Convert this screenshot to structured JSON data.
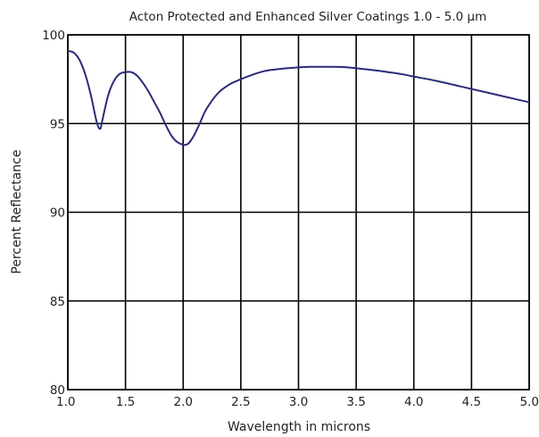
{
  "chart_data": {
    "type": "line",
    "title": "Acton Protected and Enhanced Silver Coatings 1.0 - 5.0 µm",
    "xlabel": "Wavelength in microns",
    "ylabel": "Percent Reflectance",
    "xlim": [
      1.0,
      5.0
    ],
    "ylim": [
      80,
      100
    ],
    "xticks": [
      "1.0",
      "1.5",
      "2.0",
      "2.5",
      "3.0",
      "3.5",
      "4.0",
      "4.5",
      "5.0"
    ],
    "yticks": [
      "80",
      "85",
      "90",
      "95",
      "100"
    ],
    "grid": true,
    "line_color": "#2b2b7a",
    "series": [
      {
        "x": [
          1.0,
          1.05,
          1.1,
          1.15,
          1.2,
          1.25,
          1.28,
          1.3,
          1.35,
          1.4,
          1.45,
          1.5,
          1.55,
          1.6,
          1.65,
          1.7,
          1.75,
          1.8,
          1.85,
          1.9,
          1.95,
          2.0,
          2.02,
          2.05,
          2.1,
          2.15,
          2.2,
          2.3,
          2.4,
          2.5,
          2.6,
          2.7,
          2.8,
          2.9,
          3.0,
          3.1,
          3.2,
          3.3,
          3.4,
          3.5,
          3.6,
          3.7,
          3.8,
          3.9,
          4.0,
          4.2,
          4.4,
          4.6,
          4.8,
          5.0
        ],
        "y": [
          99.1,
          99.0,
          98.6,
          97.8,
          96.6,
          95.1,
          94.7,
          95.2,
          96.6,
          97.4,
          97.8,
          97.9,
          97.9,
          97.7,
          97.3,
          96.8,
          96.2,
          95.6,
          94.9,
          94.3,
          93.95,
          93.8,
          93.8,
          93.9,
          94.4,
          95.1,
          95.8,
          96.7,
          97.2,
          97.5,
          97.75,
          97.95,
          98.05,
          98.12,
          98.17,
          98.2,
          98.2,
          98.2,
          98.18,
          98.12,
          98.05,
          97.97,
          97.88,
          97.78,
          97.65,
          97.4,
          97.1,
          96.8,
          96.5,
          96.2
        ]
      }
    ]
  }
}
